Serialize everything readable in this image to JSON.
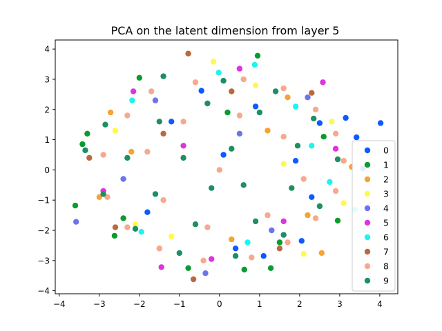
{
  "chart_data": {
    "type": "scatter",
    "title": "PCA on the latent dimension from layer 5",
    "xlabel": "",
    "ylabel": "",
    "xlim": [
      -4.1,
      4.45
    ],
    "ylim": [
      -4.1,
      4.3
    ],
    "xticks": [
      -4,
      -3,
      -2,
      -1,
      0,
      1,
      2,
      3,
      4
    ],
    "yticks": [
      -4,
      -3,
      -2,
      -1,
      0,
      1,
      2,
      3,
      4
    ],
    "grid": false,
    "legend_position": "center-right",
    "series": [
      {
        "name": "0",
        "color": "#0e5aff",
        "points": [
          [
            4.02,
            1.55
          ],
          [
            3.42,
            1.08
          ],
          [
            3.15,
            1.72
          ],
          [
            2.05,
            -2.35
          ],
          [
            2.5,
            1.55
          ],
          [
            1.1,
            -2.85
          ],
          [
            -0.45,
            2.62
          ],
          [
            0.4,
            -2.6
          ],
          [
            1.9,
            0.3
          ],
          [
            -1.2,
            1.6
          ],
          [
            0.9,
            2.1
          ],
          [
            2.3,
            -0.9
          ],
          [
            -1.8,
            -1.4
          ],
          [
            0.1,
            0.5
          ]
        ]
      },
      {
        "name": "1",
        "color": "#0b9b2e",
        "points": [
          [
            0.95,
            3.78
          ],
          [
            -3.6,
            -1.18
          ],
          [
            -3.42,
            0.85
          ],
          [
            2.95,
            -1.68
          ],
          [
            -2.62,
            -2.18
          ],
          [
            -0.78,
            -3.25
          ],
          [
            1.28,
            -3.25
          ],
          [
            0.62,
            -3.3
          ],
          [
            -2.0,
            3.05
          ],
          [
            -3.3,
            1.2
          ],
          [
            2.6,
            1.1
          ],
          [
            1.5,
            -2.4
          ],
          [
            -2.4,
            -1.6
          ],
          [
            0.2,
            1.9
          ]
        ]
      },
      {
        "name": "2",
        "color": "#f5a331",
        "points": [
          [
            -2.72,
            1.9
          ],
          [
            2.55,
            -2.75
          ],
          [
            -3.0,
            -0.9
          ],
          [
            3.3,
            0.1
          ],
          [
            1.7,
            2.4
          ],
          [
            -1.5,
            -2.6
          ],
          [
            0.3,
            -2.3
          ],
          [
            2.2,
            -1.5
          ],
          [
            -2.2,
            0.6
          ],
          [
            1.2,
            1.3
          ]
        ]
      },
      {
        "name": "3",
        "color": "#fff94a",
        "points": [
          [
            -0.15,
            3.58
          ],
          [
            2.1,
            -2.78
          ],
          [
            3.1,
            -1.1
          ],
          [
            -2.6,
            1.3
          ],
          [
            0.9,
            2.8
          ],
          [
            -1.2,
            -2.2
          ],
          [
            2.8,
            1.6
          ],
          [
            -2.1,
            -1.8
          ],
          [
            1.6,
            0.2
          ]
        ]
      },
      {
        "name": "4",
        "color": "#6b74ee",
        "points": [
          [
            -3.58,
            -1.72
          ],
          [
            -0.35,
            -3.42
          ],
          [
            3.58,
            0.05
          ],
          [
            2.2,
            2.4
          ],
          [
            -2.4,
            -0.3
          ],
          [
            1.3,
            -2.0
          ],
          [
            -1.6,
            2.3
          ],
          [
            0.5,
            1.2
          ]
        ]
      },
      {
        "name": "5",
        "color": "#db34e0",
        "points": [
          [
            2.58,
            2.9
          ],
          [
            -1.45,
            -3.22
          ],
          [
            0.5,
            3.35
          ],
          [
            -0.2,
            -2.95
          ],
          [
            -2.15,
            2.6
          ],
          [
            2.9,
            0.7
          ],
          [
            -2.9,
            -0.7
          ],
          [
            1.6,
            -1.7
          ],
          [
            -0.9,
            0.8
          ]
        ]
      },
      {
        "name": "6",
        "color": "#1af5f0",
        "points": [
          [
            0.88,
            3.48
          ],
          [
            3.38,
            -1.32
          ],
          [
            -0.02,
            3.22
          ],
          [
            -2.18,
            2.3
          ],
          [
            2.75,
            -0.4
          ],
          [
            1.9,
            2.1
          ],
          [
            -1.95,
            -2.05
          ],
          [
            0.7,
            -2.4
          ],
          [
            2.3,
            0.8
          ]
        ]
      },
      {
        "name": "7",
        "color": "#b86a3e",
        "points": [
          [
            -0.78,
            3.85
          ],
          [
            -0.65,
            -3.62
          ],
          [
            -3.25,
            0.4
          ],
          [
            2.3,
            2.55
          ],
          [
            1.5,
            -2.6
          ],
          [
            -2.6,
            -1.9
          ],
          [
            0.3,
            2.6
          ],
          [
            -1.4,
            1.2
          ]
        ]
      },
      {
        "name": "8",
        "color": "#f8a88c",
        "points": [
          [
            -2.9,
            0.5
          ],
          [
            -2.3,
            1.8
          ],
          [
            -1.7,
            2.6
          ],
          [
            -0.6,
            2.9
          ],
          [
            0.6,
            3.0
          ],
          [
            1.6,
            2.7
          ],
          [
            2.4,
            2.0
          ],
          [
            2.9,
            1.2
          ],
          [
            3.1,
            0.3
          ],
          [
            2.9,
            -0.7
          ],
          [
            2.4,
            -1.6
          ],
          [
            1.7,
            -2.4
          ],
          [
            0.8,
            -2.9
          ],
          [
            -0.4,
            -3.0
          ],
          [
            -1.5,
            -2.6
          ],
          [
            -2.3,
            -1.9
          ],
          [
            -2.8,
            -0.9
          ],
          [
            -1.8,
            0.6
          ],
          [
            -0.9,
            1.6
          ],
          [
            0.5,
            1.8
          ],
          [
            1.6,
            1.1
          ],
          [
            2.1,
            -0.3
          ],
          [
            1.2,
            -1.5
          ],
          [
            -0.3,
            -1.9
          ],
          [
            -1.4,
            -1.0
          ],
          [
            0.0,
            0.0
          ]
        ]
      },
      {
        "name": "9",
        "color": "#1e8e63",
        "points": [
          [
            -3.35,
            0.65
          ],
          [
            -2.85,
            1.5
          ],
          [
            -1.4,
            3.1
          ],
          [
            0.1,
            2.95
          ],
          [
            1.4,
            2.6
          ],
          [
            2.35,
            1.7
          ],
          [
            2.95,
            0.35
          ],
          [
            2.5,
            -1.2
          ],
          [
            1.6,
            -2.15
          ],
          [
            0.4,
            -2.85
          ],
          [
            -1.0,
            -2.75
          ],
          [
            -2.1,
            -1.95
          ],
          [
            -2.9,
            -0.8
          ],
          [
            -2.3,
            0.4
          ],
          [
            -1.5,
            1.6
          ],
          [
            -0.3,
            2.2
          ],
          [
            1.0,
            1.9
          ],
          [
            1.95,
            0.8
          ],
          [
            1.8,
            -0.6
          ],
          [
            0.9,
            -1.7
          ],
          [
            -0.6,
            -1.8
          ],
          [
            -1.6,
            -0.8
          ],
          [
            -0.9,
            0.4
          ],
          [
            0.3,
            0.7
          ],
          [
            0.6,
            -0.5
          ],
          [
            -0.2,
            -0.6
          ]
        ]
      }
    ]
  }
}
